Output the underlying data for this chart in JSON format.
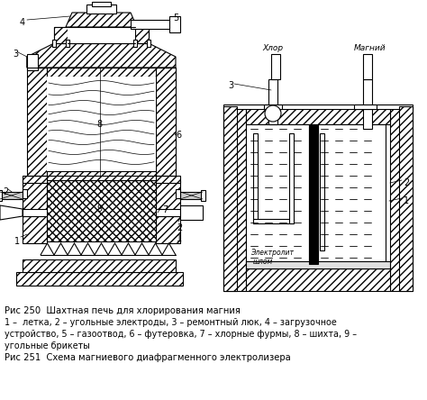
{
  "background_color": "#ffffff",
  "caption1_title": "Рис 250  Шахтная печь для хлорирования магния",
  "caption1_body": "1 –  летка, 2 – угольные электроды, 3 – ремонтный люк, 4 – загрузочное\nустройство, 5 – газоотвод, 6 – футеровка, 7 – хлорные фурмы, 8 – шихта, 9 –\nугольные брикеты",
  "caption2": "Рис 251  Схема магниевого диафрагменного электролизера",
  "label_xlor": "Хлор",
  "label_magniy": "Магний",
  "line_color": "#000000",
  "text_color": "#000000",
  "caption_fontsize": 7.2,
  "label_fontsize": 7.0
}
